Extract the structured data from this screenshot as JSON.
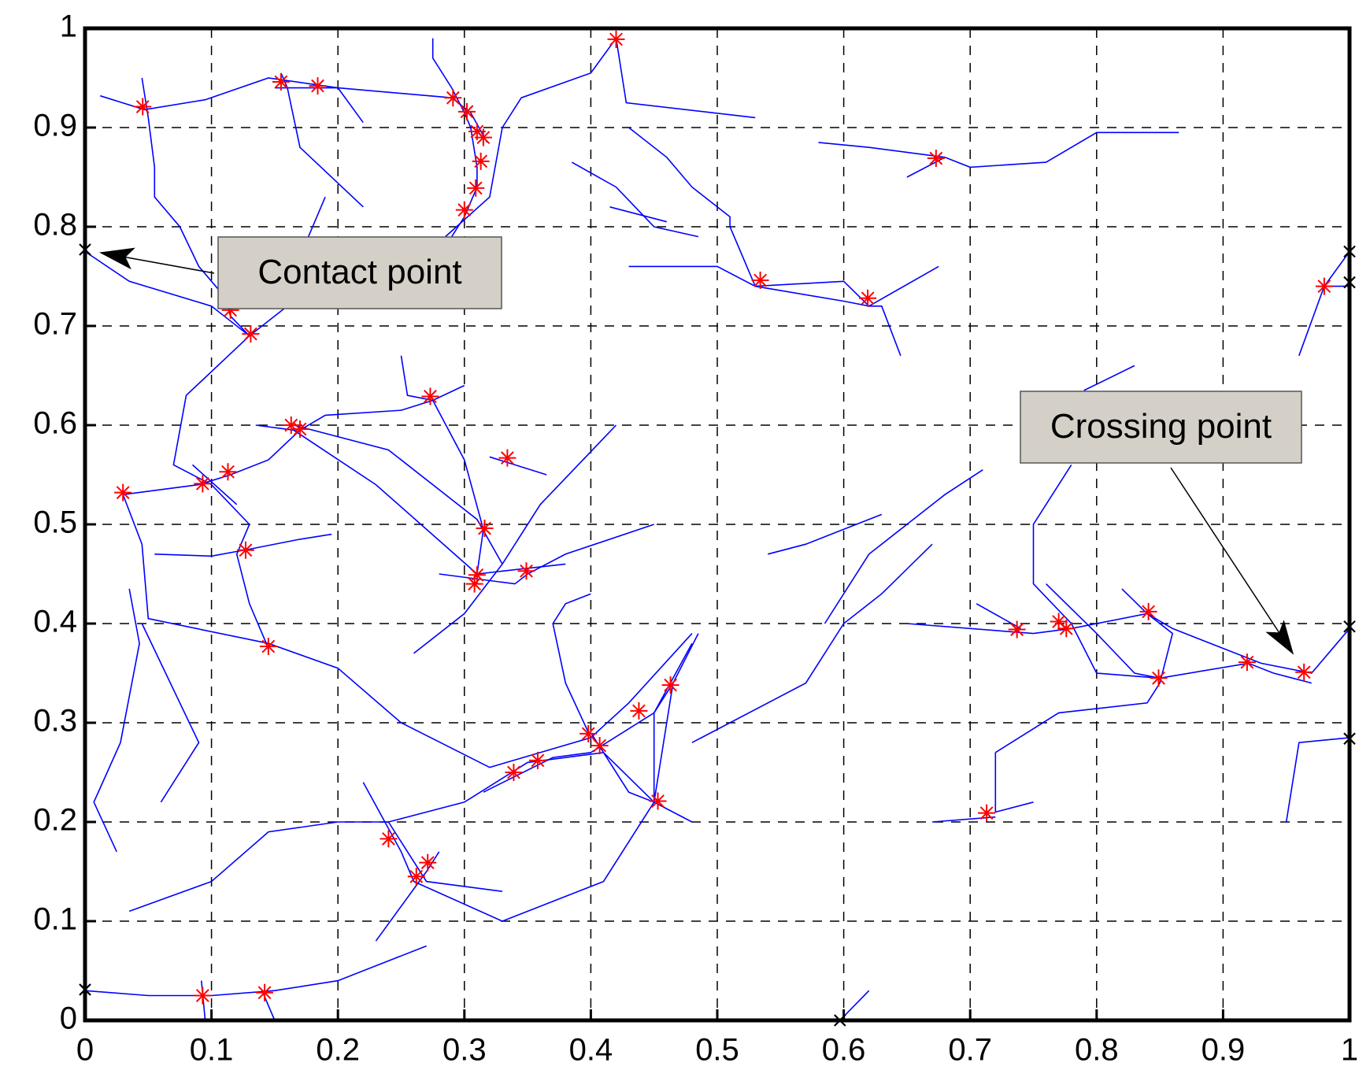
{
  "chart_data": {
    "type": "line",
    "xlim": [
      0,
      1
    ],
    "ylim": [
      0,
      1
    ],
    "xticks": [
      0,
      0.1,
      0.2,
      0.3,
      0.4,
      0.5,
      0.6,
      0.7,
      0.8,
      0.9,
      1
    ],
    "yticks": [
      0,
      0.1,
      0.2,
      0.3,
      0.4,
      0.5,
      0.6,
      0.7,
      0.8,
      0.9,
      1
    ],
    "grid": true,
    "line_color": "#0000ff",
    "series": [
      {
        "x": [
          0.012,
          0.047,
          0.095,
          0.145,
          0.2,
          0.29,
          0.305,
          0.318
        ],
        "y": [
          0.932,
          0.918,
          0.928,
          0.95,
          0.94,
          0.93,
          0.915,
          0.885
        ]
      },
      {
        "x": [
          0.045,
          0.05,
          0.055,
          0.055,
          0.075,
          0.09,
          0.11,
          0.115,
          0.13
        ],
        "y": [
          0.95,
          0.91,
          0.86,
          0.83,
          0.8,
          0.76,
          0.73,
          0.71,
          0.69
        ]
      },
      {
        "x": [
          0.15,
          0.2,
          0.22
        ],
        "y": [
          0.94,
          0.94,
          0.905
        ]
      },
      {
        "x": [
          0.155,
          0.16,
          0.17,
          0.22
        ],
        "y": [
          0.955,
          0.94,
          0.88,
          0.82
        ]
      },
      {
        "x": [
          0.275,
          0.275,
          0.29,
          0.3,
          0.305,
          0.31,
          0.31,
          0.3,
          0.29
        ],
        "y": [
          0.99,
          0.97,
          0.94,
          0.915,
          0.9,
          0.86,
          0.84,
          0.81,
          0.79
        ]
      },
      {
        "x": [
          0.285,
          0.32,
          0.33,
          0.345,
          0.4,
          0.42,
          0.428,
          0.53
        ],
        "y": [
          0.79,
          0.83,
          0.9,
          0.93,
          0.955,
          0.99,
          0.925,
          0.91
        ]
      },
      {
        "x": [
          0.0,
          0.035,
          0.1,
          0.13,
          0.16
        ],
        "y": [
          0.775,
          0.745,
          0.72,
          0.69,
          0.72
        ]
      },
      {
        "x": [
          0.19,
          0.17
        ],
        "y": [
          0.83,
          0.77
        ]
      },
      {
        "x": [
          0.13,
          0.08,
          0.07,
          0.1,
          0.13,
          0.12,
          0.13,
          0.145
        ],
        "y": [
          0.69,
          0.63,
          0.56,
          0.54,
          0.5,
          0.47,
          0.42,
          0.375
        ]
      },
      {
        "x": [
          0.03,
          0.09,
          0.115,
          0.145,
          0.17,
          0.19,
          0.25,
          0.275,
          0.3
        ],
        "y": [
          0.53,
          0.54,
          0.55,
          0.565,
          0.595,
          0.61,
          0.615,
          0.625,
          0.64
        ]
      },
      {
        "x": [
          0.085,
          0.12
        ],
        "y": [
          0.56,
          0.52
        ]
      },
      {
        "x": [
          0.03,
          0.045,
          0.05,
          0.145,
          0.2,
          0.25,
          0.32,
          0.4,
          0.43,
          0.48
        ],
        "y": [
          0.53,
          0.48,
          0.405,
          0.38,
          0.355,
          0.3,
          0.255,
          0.285,
          0.32,
          0.39
        ]
      },
      {
        "x": [
          0.055,
          0.1,
          0.13,
          0.17,
          0.195
        ],
        "y": [
          0.47,
          0.468,
          0.475,
          0.485,
          0.49
        ]
      },
      {
        "x": [
          0.135,
          0.165,
          0.23,
          0.31,
          0.38
        ],
        "y": [
          0.6,
          0.595,
          0.54,
          0.45,
          0.46
        ]
      },
      {
        "x": [
          0.165,
          0.24,
          0.31,
          0.33
        ],
        "y": [
          0.6,
          0.575,
          0.505,
          0.46
        ]
      },
      {
        "x": [
          0.25,
          0.255,
          0.275,
          0.3,
          0.315,
          0.31,
          0.31
        ],
        "y": [
          0.67,
          0.63,
          0.625,
          0.565,
          0.495,
          0.45,
          0.44
        ]
      },
      {
        "x": [
          0.32,
          0.365
        ],
        "y": [
          0.568,
          0.55
        ]
      },
      {
        "x": [
          0.28,
          0.34,
          0.35,
          0.38,
          0.45
        ],
        "y": [
          0.45,
          0.44,
          0.45,
          0.47,
          0.5
        ]
      },
      {
        "x": [
          0.26,
          0.3,
          0.33,
          0.36,
          0.42
        ],
        "y": [
          0.37,
          0.41,
          0.46,
          0.52,
          0.6
        ]
      },
      {
        "x": [
          0.035,
          0.043,
          0.028,
          0.007,
          0.025
        ],
        "y": [
          0.435,
          0.38,
          0.28,
          0.22,
          0.17
        ]
      },
      {
        "x": [
          0.045,
          0.09,
          0.06
        ],
        "y": [
          0.4,
          0.28,
          0.22
        ]
      },
      {
        "x": [
          0.035,
          0.1,
          0.145,
          0.2,
          0.24,
          0.3,
          0.35,
          0.41,
          0.45,
          0.48
        ],
        "y": [
          0.11,
          0.14,
          0.19,
          0.2,
          0.2,
          0.22,
          0.26,
          0.27,
          0.22,
          0.2
        ]
      },
      {
        "x": [
          0.22,
          0.25,
          0.26,
          0.33,
          0.41,
          0.45,
          0.465,
          0.485
        ],
        "y": [
          0.24,
          0.17,
          0.14,
          0.1,
          0.14,
          0.22,
          0.34,
          0.39
        ]
      },
      {
        "x": [
          0.23,
          0.27,
          0.28
        ],
        "y": [
          0.08,
          0.15,
          0.17
        ]
      },
      {
        "x": [
          0.24,
          0.27,
          0.33
        ],
        "y": [
          0.2,
          0.14,
          0.13
        ]
      },
      {
        "x": [
          0.0,
          0.05,
          0.1,
          0.15,
          0.2,
          0.27
        ],
        "y": [
          0.03,
          0.025,
          0.025,
          0.03,
          0.04,
          0.075
        ]
      },
      {
        "x": [
          0.092,
          0.095
        ],
        "y": [
          0.04,
          0.0
        ]
      },
      {
        "x": [
          0.14,
          0.15
        ],
        "y": [
          0.03,
          0.0
        ]
      },
      {
        "x": [
          0.4,
          0.38,
          0.37,
          0.38,
          0.4
        ],
        "y": [
          0.285,
          0.34,
          0.4,
          0.42,
          0.43
        ]
      },
      {
        "x": [
          0.4,
          0.43,
          0.45,
          0.45,
          0.465
        ],
        "y": [
          0.29,
          0.23,
          0.22,
          0.31,
          0.34
        ]
      },
      {
        "x": [
          0.315,
          0.37,
          0.4,
          0.45,
          0.48
        ],
        "y": [
          0.23,
          0.265,
          0.27,
          0.31,
          0.38
        ]
      },
      {
        "x": [
          0.43,
          0.46,
          0.48,
          0.51,
          0.51,
          0.53,
          0.6,
          0.62,
          0.63,
          0.645
        ],
        "y": [
          0.9,
          0.87,
          0.84,
          0.81,
          0.8,
          0.74,
          0.745,
          0.72,
          0.72,
          0.67
        ]
      },
      {
        "x": [
          0.43,
          0.5,
          0.53,
          0.6,
          0.62,
          0.675
        ],
        "y": [
          0.76,
          0.76,
          0.74,
          0.725,
          0.72,
          0.76
        ]
      },
      {
        "x": [
          0.385,
          0.42,
          0.435,
          0.45,
          0.485
        ],
        "y": [
          0.865,
          0.84,
          0.82,
          0.8,
          0.79
        ]
      },
      {
        "x": [
          0.415,
          0.46
        ],
        "y": [
          0.82,
          0.805
        ]
      },
      {
        "x": [
          0.58,
          0.62,
          0.68,
          0.7,
          0.76,
          0.8,
          0.865
        ],
        "y": [
          0.885,
          0.88,
          0.87,
          0.86,
          0.865,
          0.895,
          0.895
        ]
      },
      {
        "x": [
          0.65,
          0.68
        ],
        "y": [
          0.85,
          0.87
        ]
      },
      {
        "x": [
          0.96,
          0.98,
          1.0
        ],
        "y": [
          0.67,
          0.74,
          0.775
        ]
      },
      {
        "x": [
          0.98,
          1.0
        ],
        "y": [
          0.74,
          0.74
        ]
      },
      {
        "x": [
          0.54,
          0.57,
          0.6,
          0.63
        ],
        "y": [
          0.47,
          0.48,
          0.495,
          0.51
        ]
      },
      {
        "x": [
          0.585,
          0.62,
          0.65,
          0.68,
          0.71
        ],
        "y": [
          0.4,
          0.47,
          0.5,
          0.53,
          0.555
        ]
      },
      {
        "x": [
          0.48,
          0.57,
          0.6,
          0.63,
          0.67
        ],
        "y": [
          0.28,
          0.34,
          0.4,
          0.43,
          0.48
        ]
      },
      {
        "x": [
          0.65,
          0.75,
          0.78,
          0.84,
          0.86,
          0.93,
          0.97,
          1.0
        ],
        "y": [
          0.4,
          0.39,
          0.395,
          0.41,
          0.395,
          0.36,
          0.35,
          0.395
        ]
      },
      {
        "x": [
          0.76,
          0.8,
          0.83,
          0.85,
          0.92,
          0.94,
          0.97
        ],
        "y": [
          0.44,
          0.39,
          0.35,
          0.345,
          0.36,
          0.35,
          0.34
        ]
      },
      {
        "x": [
          0.72,
          0.72,
          0.75
        ],
        "y": [
          0.27,
          0.21,
          0.22
        ]
      },
      {
        "x": [
          0.67,
          0.72
        ],
        "y": [
          0.2,
          0.205
        ]
      },
      {
        "x": [
          0.72,
          0.77,
          0.84,
          0.85,
          0.86,
          0.84,
          0.82
        ],
        "y": [
          0.27,
          0.31,
          0.32,
          0.34,
          0.39,
          0.41,
          0.435
        ]
      },
      {
        "x": [
          0.78,
          0.75,
          0.75,
          0.78,
          0.8,
          0.85
        ],
        "y": [
          0.56,
          0.5,
          0.44,
          0.4,
          0.35,
          0.345
        ]
      },
      {
        "x": [
          0.705,
          0.74
        ],
        "y": [
          0.42,
          0.395
        ]
      },
      {
        "x": [
          0.79,
          0.83
        ],
        "y": [
          0.635,
          0.66
        ]
      },
      {
        "x": [
          0.95,
          0.96,
          1.0
        ],
        "y": [
          0.2,
          0.28,
          0.285
        ]
      },
      {
        "x": [
          0.597,
          0.62
        ],
        "y": [
          0.0,
          0.03
        ]
      }
    ],
    "crossing_points": {
      "color": "#ff0000",
      "x": [
        0.0456,
        0.155,
        0.184,
        0.291,
        0.302,
        0.31,
        0.315,
        0.313,
        0.309,
        0.3,
        0.42,
        0.673,
        0.534,
        0.619,
        0.98,
        0.131,
        0.115,
        0.273,
        0.163,
        0.17,
        0.334,
        0.113,
        0.093,
        0.03,
        0.316,
        0.349,
        0.31,
        0.308,
        0.127,
        0.145,
        0.737,
        0.77,
        0.776,
        0.841,
        0.849,
        0.919,
        0.964,
        0.463,
        0.438,
        0.398,
        0.407,
        0.358,
        0.339,
        0.453,
        0.713,
        0.24,
        0.271,
        0.262,
        0.093,
        0.142
      ],
      "y": [
        0.921,
        0.946,
        0.942,
        0.93,
        0.916,
        0.896,
        0.89,
        0.866,
        0.839,
        0.817,
        0.989,
        0.869,
        0.746,
        0.728,
        0.74,
        0.692,
        0.716,
        0.629,
        0.6,
        0.596,
        0.567,
        0.553,
        0.541,
        0.532,
        0.496,
        0.453,
        0.449,
        0.44,
        0.474,
        0.377,
        0.394,
        0.402,
        0.395,
        0.412,
        0.345,
        0.361,
        0.351,
        0.338,
        0.312,
        0.289,
        0.277,
        0.262,
        0.25,
        0.221,
        0.209,
        0.183,
        0.159,
        0.145,
        0.025,
        0.028
      ]
    },
    "contact_points": {
      "color": "#000000",
      "x": [
        0,
        0,
        1,
        1,
        1,
        1,
        0.597
      ],
      "y": [
        0.777,
        0.031,
        0.775,
        0.744,
        0.397,
        0.284,
        0
      ]
    },
    "annotations": [
      {
        "text": "Contact point"
      },
      {
        "text": "Crossing point"
      }
    ]
  }
}
